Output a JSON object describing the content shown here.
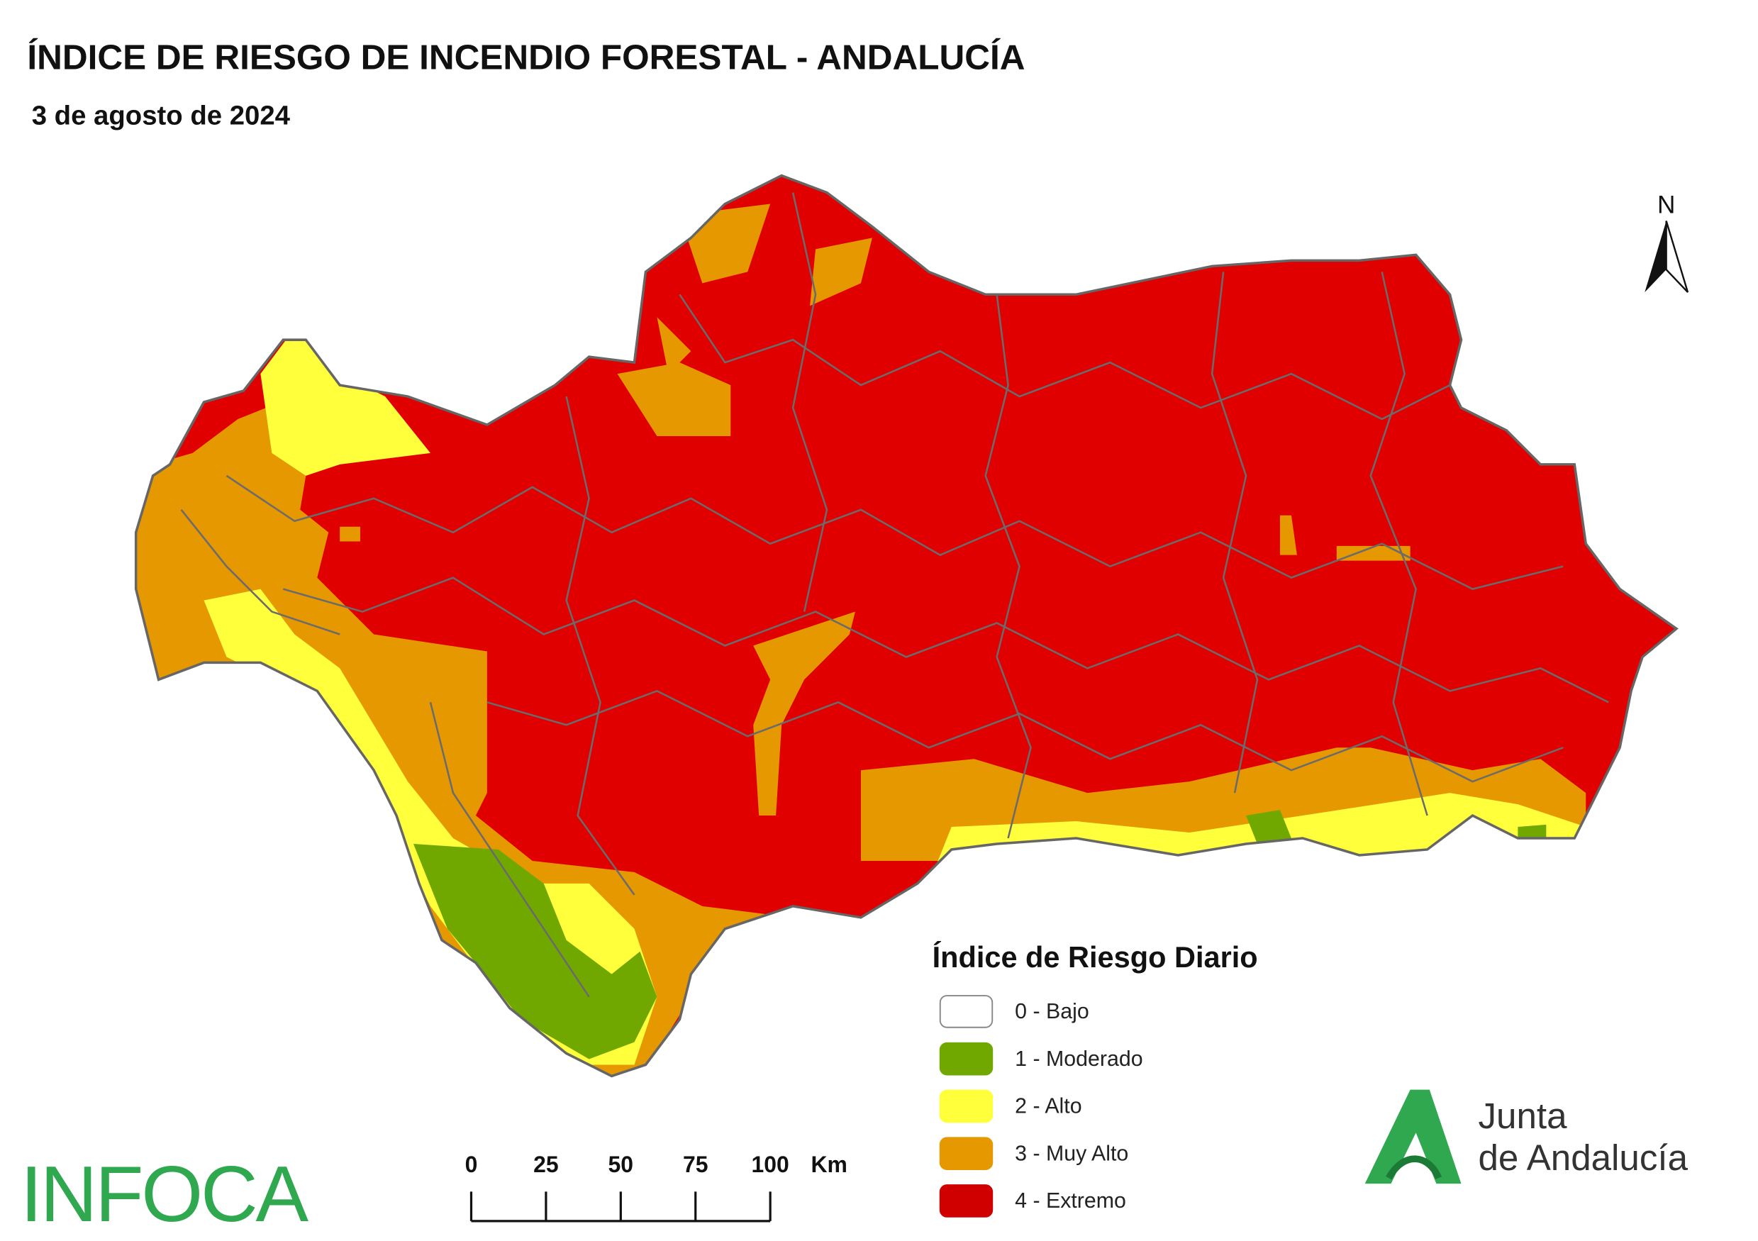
{
  "header": {
    "title": "ÍNDICE DE RIESGO DE INCENDIO FORESTAL - ANDALUCÍA",
    "subtitle": "3 de agosto de 2024"
  },
  "north": "N",
  "legend": {
    "title": "Índice de Riesgo Diario",
    "items": [
      {
        "label": "0 - Bajo",
        "color": "#ffffff"
      },
      {
        "label": "1 - Moderado",
        "color": "#70a800"
      },
      {
        "label": "2 - Alto",
        "color": "#ffff3c"
      },
      {
        "label": "3 - Muy Alto",
        "color": "#e69800"
      },
      {
        "label": "4 - Extremo",
        "color": "#d10000"
      }
    ]
  },
  "scale_bar": {
    "ticks": [
      0,
      25,
      50,
      75,
      100
    ],
    "unit": "Km"
  },
  "logos": {
    "infoca": "INFOCA",
    "junta_line1": "Junta",
    "junta_line2": "de Andalucía"
  }
}
